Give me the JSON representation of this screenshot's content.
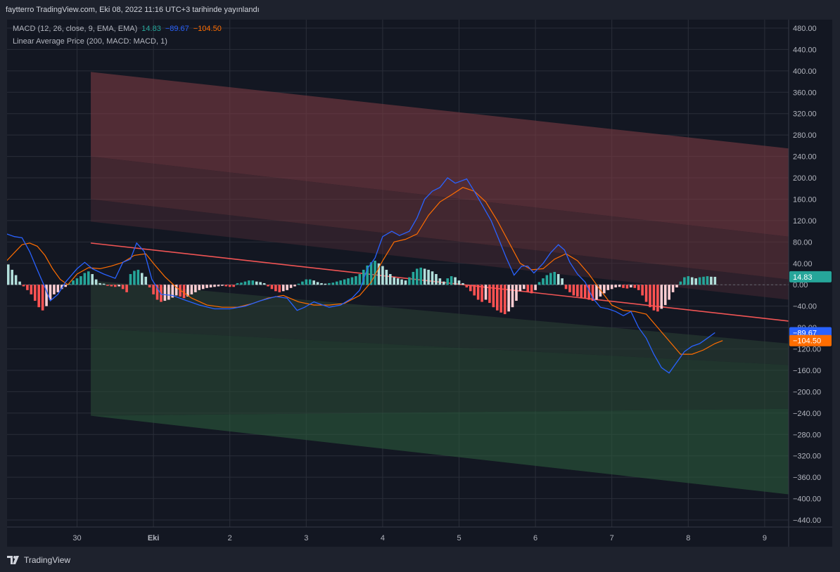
{
  "header": {
    "caption": "faytterro TradingView.com, Eki 08, 2022 11:16 UTC+3 tarihinde yayınlandı"
  },
  "legend": {
    "macd_label": "MACD (12, 26, close, 9, EMA, EMA)",
    "macd_value": "14.83",
    "signal_value": "−89.67",
    "third_value": "−104.50",
    "lap_label": "Linear Average Price (200, MACD: MACD, 1)"
  },
  "footer": {
    "brand": "TradingView",
    "logo_icon": "tradingview-logo-icon"
  },
  "colors": {
    "background": "#131722",
    "grid": "#2a2e39",
    "macd_line": "#2962ff",
    "signal_line": "#ff6d00",
    "regression_line": "#f05454",
    "hist_pos_strong": "#26a69a",
    "hist_pos_weak": "#b2dfdb",
    "hist_neg_strong": "#ff5252",
    "hist_neg_weak": "#ffcdd2"
  },
  "chart_data": {
    "type": "line",
    "y_range": [
      -460,
      500
    ],
    "y_ticks": [
      "480.00",
      "440.00",
      "400.00",
      "360.00",
      "320.00",
      "280.00",
      "240.00",
      "200.00",
      "160.00",
      "120.00",
      "80.00",
      "40.00",
      "0.00",
      "−40.00",
      "−80.00",
      "−120.00",
      "−160.00",
      "−200.00",
      "−240.00",
      "−280.00",
      "−320.00",
      "−360.00",
      "−400.00",
      "−440.00"
    ],
    "x_range": [
      -1.9,
      8.3
    ],
    "x_ticks": [
      {
        "x": 0,
        "label": "30",
        "bold": false
      },
      {
        "x": 1,
        "label": "Eki",
        "bold": true
      },
      {
        "x": 2,
        "label": "2",
        "bold": false
      },
      {
        "x": 3,
        "label": "3",
        "bold": false
      },
      {
        "x": 4,
        "label": "4",
        "bold": false
      },
      {
        "x": 5,
        "label": "5",
        "bold": false
      },
      {
        "x": 6,
        "label": "6",
        "bold": false
      },
      {
        "x": 7,
        "label": "7",
        "bold": false
      },
      {
        "x": 8,
        "label": "8",
        "bold": false
      },
      {
        "x": 9,
        "label": "9",
        "bold": false
      }
    ],
    "zero_line": 0,
    "regression": {
      "x0": 0.18,
      "y0": 78,
      "x1": 9.3,
      "y1": -68
    },
    "bands": [
      {
        "name": "upper-outer",
        "x0": 0.18,
        "top0": 398,
        "bot0": 240,
        "top1": 255,
        "bot1": 90,
        "color": "#7b3a42",
        "opacity": 0.6
      },
      {
        "name": "upper-mid",
        "x0": 0.18,
        "top0": 240,
        "bot0": 160,
        "top1": 90,
        "bot1": 10,
        "color": "#6a343c",
        "opacity": 0.55
      },
      {
        "name": "upper-inner",
        "x0": 0.18,
        "top0": 160,
        "bot0": 118,
        "top1": 10,
        "bot1": -28,
        "color": "#4a2a33",
        "opacity": 0.5
      },
      {
        "name": "lower-inner",
        "x0": 0.18,
        "top0": 8,
        "bot0": -82,
        "top1": -110,
        "bot1": -150,
        "color": "#2a3d33",
        "opacity": 0.6
      },
      {
        "name": "lower-mid",
        "x0": 0.18,
        "top0": -82,
        "bot0": -245,
        "top1": -150,
        "bot1": -232,
        "color": "#294a36",
        "opacity": 0.6
      },
      {
        "name": "lower-outer",
        "x0": 0.18,
        "top0": -245,
        "bot0": -245,
        "top1": -232,
        "bot1": -392,
        "color": "#2b5a3c",
        "opacity": 0.6
      }
    ],
    "macd_line": [
      [
        -0.92,
        95
      ],
      [
        -0.82,
        90
      ],
      [
        -0.72,
        88
      ],
      [
        -0.62,
        62
      ],
      [
        -0.52,
        28
      ],
      [
        -0.42,
        -5
      ],
      [
        -0.35,
        -30
      ],
      [
        -0.25,
        -18
      ],
      [
        -0.15,
        5
      ],
      [
        0,
        30
      ],
      [
        0.1,
        42
      ],
      [
        0.2,
        30
      ],
      [
        0.35,
        20
      ],
      [
        0.5,
        12
      ],
      [
        0.6,
        42
      ],
      [
        0.7,
        48
      ],
      [
        0.78,
        78
      ],
      [
        0.88,
        62
      ],
      [
        0.98,
        10
      ],
      [
        1.1,
        -18
      ],
      [
        1.25,
        -20
      ],
      [
        1.4,
        -28
      ],
      [
        1.6,
        -38
      ],
      [
        1.8,
        -45
      ],
      [
        2.0,
        -45
      ],
      [
        2.2,
        -40
      ],
      [
        2.4,
        -30
      ],
      [
        2.6,
        -22
      ],
      [
        2.75,
        -25
      ],
      [
        2.88,
        -48
      ],
      [
        2.98,
        -42
      ],
      [
        3.1,
        -32
      ],
      [
        3.3,
        -42
      ],
      [
        3.45,
        -38
      ],
      [
        3.6,
        -25
      ],
      [
        3.7,
        -10
      ],
      [
        3.8,
        30
      ],
      [
        3.9,
        50
      ],
      [
        4.0,
        90
      ],
      [
        4.12,
        100
      ],
      [
        4.22,
        92
      ],
      [
        4.35,
        100
      ],
      [
        4.45,
        125
      ],
      [
        4.55,
        160
      ],
      [
        4.65,
        175
      ],
      [
        4.75,
        182
      ],
      [
        4.85,
        200
      ],
      [
        4.95,
        190
      ],
      [
        5.1,
        198
      ],
      [
        5.22,
        170
      ],
      [
        5.32,
        145
      ],
      [
        5.42,
        120
      ],
      [
        5.52,
        85
      ],
      [
        5.62,
        50
      ],
      [
        5.72,
        18
      ],
      [
        5.82,
        35
      ],
      [
        5.9,
        35
      ],
      [
        5.98,
        22
      ],
      [
        6.1,
        40
      ],
      [
        6.2,
        60
      ],
      [
        6.3,
        75
      ],
      [
        6.38,
        65
      ],
      [
        6.45,
        42
      ],
      [
        6.55,
        20
      ],
      [
        6.65,
        5
      ],
      [
        6.75,
        -25
      ],
      [
        6.85,
        -42
      ],
      [
        6.95,
        -45
      ],
      [
        7.05,
        -50
      ],
      [
        7.15,
        -58
      ],
      [
        7.25,
        -50
      ],
      [
        7.35,
        -80
      ],
      [
        7.45,
        -100
      ],
      [
        7.55,
        -130
      ],
      [
        7.65,
        -155
      ],
      [
        7.75,
        -165
      ],
      [
        7.85,
        -145
      ],
      [
        7.95,
        -125
      ],
      [
        8.05,
        -115
      ],
      [
        8.15,
        -110
      ],
      [
        8.25,
        -100
      ],
      [
        8.35,
        -89.67
      ]
    ],
    "signal_line": [
      [
        -0.92,
        45
      ],
      [
        -0.82,
        60
      ],
      [
        -0.72,
        75
      ],
      [
        -0.62,
        78
      ],
      [
        -0.52,
        72
      ],
      [
        -0.42,
        55
      ],
      [
        -0.32,
        30
      ],
      [
        -0.22,
        10
      ],
      [
        -0.12,
        0
      ],
      [
        0,
        20
      ],
      [
        0.15,
        32
      ],
      [
        0.3,
        30
      ],
      [
        0.45,
        35
      ],
      [
        0.6,
        42
      ],
      [
        0.75,
        55
      ],
      [
        0.9,
        58
      ],
      [
        1.0,
        40
      ],
      [
        1.15,
        15
      ],
      [
        1.3,
        -5
      ],
      [
        1.5,
        -25
      ],
      [
        1.7,
        -38
      ],
      [
        1.9,
        -42
      ],
      [
        2.1,
        -42
      ],
      [
        2.3,
        -35
      ],
      [
        2.5,
        -25
      ],
      [
        2.7,
        -20
      ],
      [
        2.9,
        -32
      ],
      [
        3.1,
        -38
      ],
      [
        3.3,
        -38
      ],
      [
        3.5,
        -35
      ],
      [
        3.7,
        -20
      ],
      [
        3.85,
        5
      ],
      [
        4.0,
        45
      ],
      [
        4.15,
        80
      ],
      [
        4.3,
        85
      ],
      [
        4.45,
        95
      ],
      [
        4.6,
        130
      ],
      [
        4.75,
        155
      ],
      [
        4.9,
        168
      ],
      [
        5.05,
        182
      ],
      [
        5.2,
        175
      ],
      [
        5.35,
        155
      ],
      [
        5.5,
        120
      ],
      [
        5.65,
        80
      ],
      [
        5.8,
        40
      ],
      [
        5.95,
        28
      ],
      [
        6.1,
        30
      ],
      [
        6.25,
        48
      ],
      [
        6.4,
        58
      ],
      [
        6.55,
        45
      ],
      [
        6.7,
        20
      ],
      [
        6.85,
        -10
      ],
      [
        7.0,
        -38
      ],
      [
        7.15,
        -48
      ],
      [
        7.3,
        -50
      ],
      [
        7.45,
        -55
      ],
      [
        7.6,
        -80
      ],
      [
        7.75,
        -105
      ],
      [
        7.9,
        -130
      ],
      [
        8.05,
        -130
      ],
      [
        8.2,
        -122
      ],
      [
        8.35,
        -110
      ],
      [
        8.45,
        -104.5
      ]
    ],
    "histogram": [
      [
        -1.0,
        50
      ],
      [
        -0.95,
        45
      ],
      [
        -0.9,
        38
      ],
      [
        -0.85,
        28
      ],
      [
        -0.8,
        18
      ],
      [
        -0.75,
        6
      ],
      [
        -0.7,
        -3
      ],
      [
        -0.65,
        -10
      ],
      [
        -0.6,
        -18
      ],
      [
        -0.55,
        -30
      ],
      [
        -0.5,
        -42
      ],
      [
        -0.45,
        -48
      ],
      [
        -0.4,
        -40
      ],
      [
        -0.35,
        -28
      ],
      [
        -0.3,
        -18
      ],
      [
        -0.25,
        -14
      ],
      [
        -0.2,
        -8
      ],
      [
        -0.15,
        -4
      ],
      [
        -0.1,
        2
      ],
      [
        -0.05,
        8
      ],
      [
        0.0,
        12
      ],
      [
        0.05,
        16
      ],
      [
        0.1,
        22
      ],
      [
        0.15,
        25
      ],
      [
        0.2,
        20
      ],
      [
        0.25,
        10
      ],
      [
        0.3,
        3
      ],
      [
        0.35,
        2
      ],
      [
        0.4,
        -2
      ],
      [
        0.45,
        -3
      ],
      [
        0.5,
        -4
      ],
      [
        0.55,
        -3
      ],
      [
        0.6,
        -8
      ],
      [
        0.65,
        -14
      ],
      [
        0.7,
        20
      ],
      [
        0.75,
        26
      ],
      [
        0.8,
        28
      ],
      [
        0.85,
        22
      ],
      [
        0.9,
        15
      ],
      [
        0.95,
        -5
      ],
      [
        1.0,
        -18
      ],
      [
        1.05,
        -28
      ],
      [
        1.1,
        -32
      ],
      [
        1.15,
        -30
      ],
      [
        1.2,
        -28
      ],
      [
        1.25,
        -24
      ],
      [
        1.3,
        -20
      ],
      [
        1.35,
        -22
      ],
      [
        1.4,
        -25
      ],
      [
        1.45,
        -22
      ],
      [
        1.5,
        -18
      ],
      [
        1.55,
        -14
      ],
      [
        1.6,
        -10
      ],
      [
        1.65,
        -8
      ],
      [
        1.7,
        -6
      ],
      [
        1.75,
        -5
      ],
      [
        1.8,
        -4
      ],
      [
        1.85,
        -3
      ],
      [
        1.9,
        -2
      ],
      [
        1.95,
        -3
      ],
      [
        2.0,
        -4
      ],
      [
        2.05,
        -4
      ],
      [
        2.1,
        3
      ],
      [
        2.15,
        4
      ],
      [
        2.2,
        6
      ],
      [
        2.25,
        8
      ],
      [
        2.3,
        8
      ],
      [
        2.35,
        6
      ],
      [
        2.4,
        5
      ],
      [
        2.45,
        3
      ],
      [
        2.5,
        -3
      ],
      [
        2.55,
        -8
      ],
      [
        2.6,
        -12
      ],
      [
        2.65,
        -14
      ],
      [
        2.7,
        -12
      ],
      [
        2.75,
        -10
      ],
      [
        2.8,
        -6
      ],
      [
        2.85,
        -3
      ],
      [
        2.9,
        2
      ],
      [
        2.95,
        6
      ],
      [
        3.0,
        10
      ],
      [
        3.05,
        10
      ],
      [
        3.1,
        8
      ],
      [
        3.15,
        5
      ],
      [
        3.2,
        3
      ],
      [
        3.25,
        2
      ],
      [
        3.3,
        3
      ],
      [
        3.35,
        4
      ],
      [
        3.4,
        6
      ],
      [
        3.45,
        8
      ],
      [
        3.5,
        10
      ],
      [
        3.55,
        12
      ],
      [
        3.6,
        14
      ],
      [
        3.65,
        16
      ],
      [
        3.7,
        20
      ],
      [
        3.75,
        28
      ],
      [
        3.8,
        36
      ],
      [
        3.85,
        42
      ],
      [
        3.9,
        45
      ],
      [
        3.95,
        40
      ],
      [
        4.0,
        35
      ],
      [
        4.05,
        28
      ],
      [
        4.1,
        20
      ],
      [
        4.15,
        14
      ],
      [
        4.2,
        12
      ],
      [
        4.25,
        10
      ],
      [
        4.3,
        8
      ],
      [
        4.35,
        14
      ],
      [
        4.4,
        24
      ],
      [
        4.45,
        30
      ],
      [
        4.5,
        32
      ],
      [
        4.55,
        30
      ],
      [
        4.6,
        28
      ],
      [
        4.65,
        25
      ],
      [
        4.7,
        20
      ],
      [
        4.75,
        12
      ],
      [
        4.8,
        6
      ],
      [
        4.85,
        12
      ],
      [
        4.9,
        16
      ],
      [
        4.95,
        14
      ],
      [
        5.0,
        8
      ],
      [
        5.05,
        3
      ],
      [
        5.1,
        -5
      ],
      [
        5.15,
        -12
      ],
      [
        5.2,
        -20
      ],
      [
        5.25,
        -28
      ],
      [
        5.3,
        -32
      ],
      [
        5.35,
        -28
      ],
      [
        5.4,
        -34
      ],
      [
        5.45,
        -42
      ],
      [
        5.5,
        -48
      ],
      [
        5.55,
        -52
      ],
      [
        5.6,
        -55
      ],
      [
        5.65,
        -50
      ],
      [
        5.7,
        -42
      ],
      [
        5.75,
        -30
      ],
      [
        5.8,
        -12
      ],
      [
        5.85,
        -8
      ],
      [
        5.9,
        -14
      ],
      [
        5.95,
        -16
      ],
      [
        6.0,
        -10
      ],
      [
        6.05,
        5
      ],
      [
        6.1,
        12
      ],
      [
        6.15,
        18
      ],
      [
        6.2,
        22
      ],
      [
        6.25,
        24
      ],
      [
        6.3,
        20
      ],
      [
        6.35,
        12
      ],
      [
        6.4,
        -8
      ],
      [
        6.45,
        -14
      ],
      [
        6.5,
        -20
      ],
      [
        6.55,
        -22
      ],
      [
        6.6,
        -24
      ],
      [
        6.65,
        -26
      ],
      [
        6.7,
        -28
      ],
      [
        6.75,
        -30
      ],
      [
        6.8,
        -28
      ],
      [
        6.85,
        -22
      ],
      [
        6.9,
        -16
      ],
      [
        6.95,
        -10
      ],
      [
        7.0,
        -8
      ],
      [
        7.05,
        -5
      ],
      [
        7.1,
        -4
      ],
      [
        7.15,
        -6
      ],
      [
        7.2,
        -7
      ],
      [
        7.25,
        -5
      ],
      [
        7.3,
        -6
      ],
      [
        7.35,
        -10
      ],
      [
        7.4,
        -20
      ],
      [
        7.45,
        -32
      ],
      [
        7.5,
        -42
      ],
      [
        7.55,
        -48
      ],
      [
        7.6,
        -50
      ],
      [
        7.65,
        -45
      ],
      [
        7.7,
        -38
      ],
      [
        7.75,
        -28
      ],
      [
        7.8,
        -14
      ],
      [
        7.85,
        -5
      ],
      [
        7.9,
        6
      ],
      [
        7.95,
        14
      ],
      [
        8.0,
        16
      ],
      [
        8.05,
        14
      ],
      [
        8.1,
        12
      ],
      [
        8.15,
        14
      ],
      [
        8.2,
        15
      ],
      [
        8.25,
        16
      ],
      [
        8.3,
        15
      ],
      [
        8.35,
        14.83
      ]
    ],
    "last_values": [
      {
        "value": 14.83,
        "label": "14.83",
        "color": "#26a69a"
      },
      {
        "value": -89.67,
        "label": "−89.67",
        "color": "#2962ff"
      },
      {
        "value": -104.5,
        "label": "−104.50",
        "color": "#ff6d00"
      }
    ]
  }
}
